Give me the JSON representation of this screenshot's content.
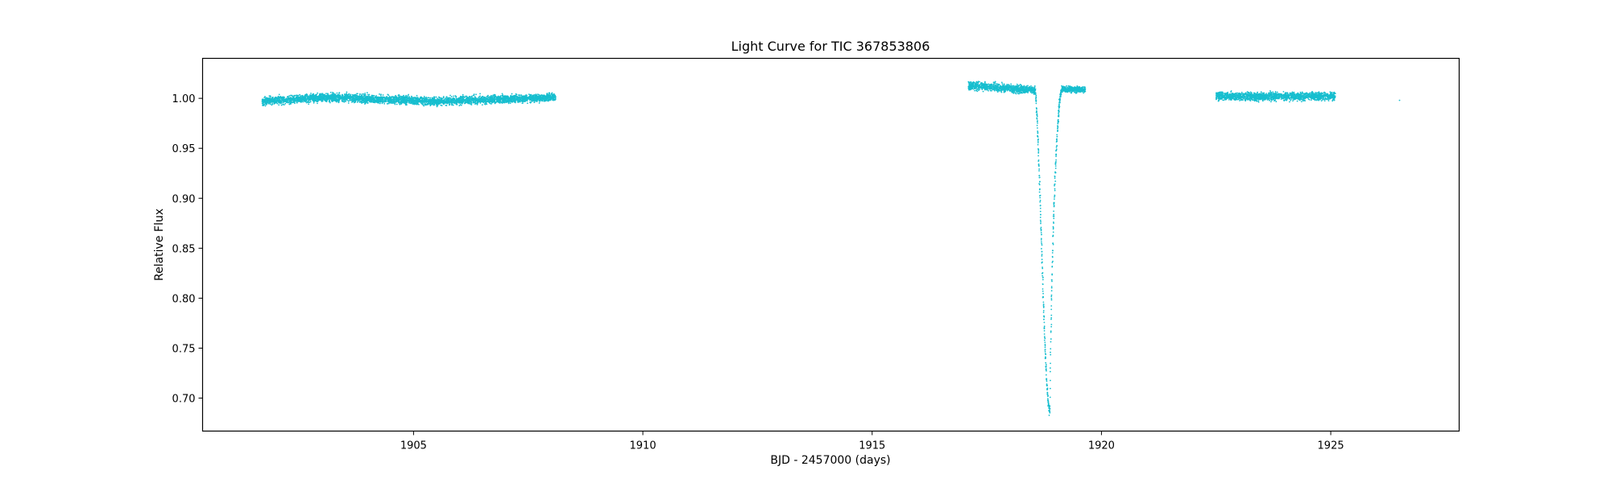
{
  "chart_data": {
    "type": "scatter",
    "title": "Light Curve for TIC 367853806",
    "xlabel": "BJD - 2457000 (days)",
    "ylabel": "Relative Flux",
    "xlim": [
      1900.4,
      1927.8
    ],
    "ylim": [
      0.667,
      1.04
    ],
    "xticks": [
      1905,
      1910,
      1915,
      1920,
      1925
    ],
    "xtick_labels": [
      "1905",
      "1910",
      "1915",
      "1920",
      "1925"
    ],
    "yticks": [
      0.7,
      0.75,
      0.8,
      0.85,
      0.9,
      0.95,
      1.0
    ],
    "ytick_labels": [
      "0.70",
      "0.75",
      "0.80",
      "0.85",
      "0.90",
      "0.95",
      "1.00"
    ],
    "grid": false,
    "legend": false,
    "marker_color": "#17becf",
    "series": [
      {
        "segments": [
          {
            "x_start": 1901.7,
            "x_end": 1908.1,
            "flux_trend": [
              [
                1901.7,
                0.997
              ],
              [
                1903.2,
                1.001
              ],
              [
                1905.5,
                0.997
              ],
              [
                1908.1,
                1.001
              ]
            ],
            "scatter": 0.004
          },
          {
            "x_start": 1917.1,
            "x_end": 1918.55,
            "flux_trend": [
              [
                1917.1,
                1.013
              ],
              [
                1918.55,
                1.008
              ]
            ],
            "scatter": 0.004
          },
          {
            "x_start": 1919.15,
            "x_end": 1919.65,
            "flux_trend": [
              [
                1919.15,
                1.009
              ],
              [
                1919.65,
                1.009
              ]
            ],
            "scatter": 0.003
          },
          {
            "x_start": 1922.5,
            "x_end": 1925.1,
            "flux_trend": [
              [
                1922.5,
                1.002
              ],
              [
                1925.1,
                1.002
              ]
            ],
            "scatter": 0.004
          }
        ],
        "eclipse": {
          "x_ingress_start": 1918.55,
          "x_min": 1918.88,
          "x_egress_end": 1919.15,
          "min_flux": 0.687
        },
        "isolated_points": [
          [
            1926.5,
            0.998
          ]
        ]
      }
    ]
  }
}
